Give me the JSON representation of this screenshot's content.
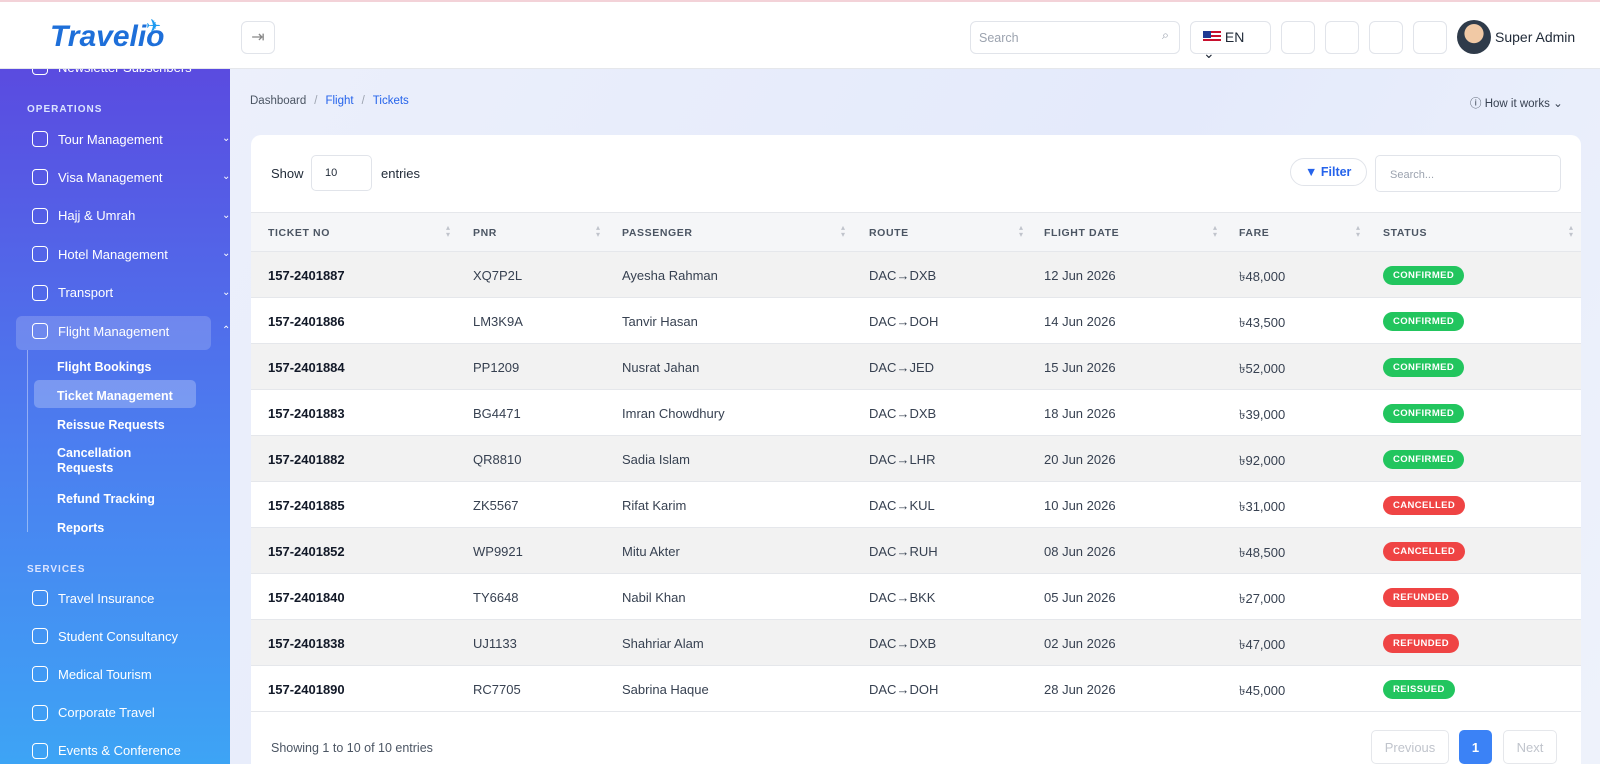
{
  "header": {
    "logo": "Travelio",
    "search_placeholder": "Search",
    "language": "EN",
    "user": "Super Admin"
  },
  "sidebar": {
    "top_item": "Newsletter Subscribers",
    "operations_title": "OPERATIONS",
    "operations": [
      "Tour Management",
      "Visa Management",
      "Hajj & Umrah",
      "Hotel Management",
      "Transport",
      "Flight Management"
    ],
    "flight_submenu": [
      "Flight Bookings",
      "Ticket Management",
      "Reissue Requests",
      "Cancellation Requests",
      "Refund Tracking",
      "Reports"
    ],
    "services_title": "SERVICES",
    "services": [
      "Travel Insurance",
      "Student Consultancy",
      "Medical Tourism",
      "Corporate Travel",
      "Events & Conference"
    ]
  },
  "breadcrumb": [
    "Dashboard",
    "Flight",
    "Tickets"
  ],
  "how_it_works": "How it works",
  "table": {
    "show_label": "Show",
    "entries_value": "10",
    "entries_label": "entries",
    "filter": "Filter",
    "search_placeholder": "Search...",
    "columns": [
      "TICKET NO",
      "PNR",
      "PASSENGER",
      "ROUTE",
      "FLIGHT DATE",
      "FARE",
      "STATUS"
    ],
    "rows": [
      [
        "157-2401887",
        "XQ7P2L",
        "Ayesha Rahman",
        "DAC→DXB",
        "12 Jun 2026",
        "৳48,000",
        "CONFIRMED"
      ],
      [
        "157-2401886",
        "LM3K9A",
        "Tanvir Hasan",
        "DAC→DOH",
        "14 Jun 2026",
        "৳43,500",
        "CONFIRMED"
      ],
      [
        "157-2401884",
        "PP1209",
        "Nusrat Jahan",
        "DAC→JED",
        "15 Jun 2026",
        "৳52,000",
        "CONFIRMED"
      ],
      [
        "157-2401883",
        "BG4471",
        "Imran Chowdhury",
        "DAC→DXB",
        "18 Jun 2026",
        "৳39,000",
        "CONFIRMED"
      ],
      [
        "157-2401882",
        "QR8810",
        "Sadia Islam",
        "DAC→LHR",
        "20 Jun 2026",
        "৳92,000",
        "CONFIRMED"
      ],
      [
        "157-2401885",
        "ZK5567",
        "Rifat Karim",
        "DAC→KUL",
        "10 Jun 2026",
        "৳31,000",
        "CANCELLED"
      ],
      [
        "157-2401852",
        "WP9921",
        "Mitu Akter",
        "DAC→RUH",
        "08 Jun 2026",
        "৳48,500",
        "CANCELLED"
      ],
      [
        "157-2401840",
        "TY6648",
        "Nabil Khan",
        "DAC→BKK",
        "05 Jun 2026",
        "৳27,000",
        "REFUNDED"
      ],
      [
        "157-2401838",
        "UJ1133",
        "Shahriar Alam",
        "DAC→DXB",
        "02 Jun 2026",
        "৳47,000",
        "REFUNDED"
      ],
      [
        "157-2401890",
        "RC7705",
        "Sabrina Haque",
        "DAC→DOH",
        "28 Jun 2026",
        "৳45,000",
        "REISSUED"
      ]
    ],
    "status_colors": [
      "#22c55e",
      "#22c55e",
      "#22c55e",
      "#22c55e",
      "#22c55e",
      "#ef4444",
      "#ef4444",
      "#ef4444",
      "#ef4444",
      "#22c55e"
    ],
    "footer": "Showing 1 to 10 of 10 entries",
    "pagination": [
      "Previous",
      "1",
      "Next"
    ]
  }
}
